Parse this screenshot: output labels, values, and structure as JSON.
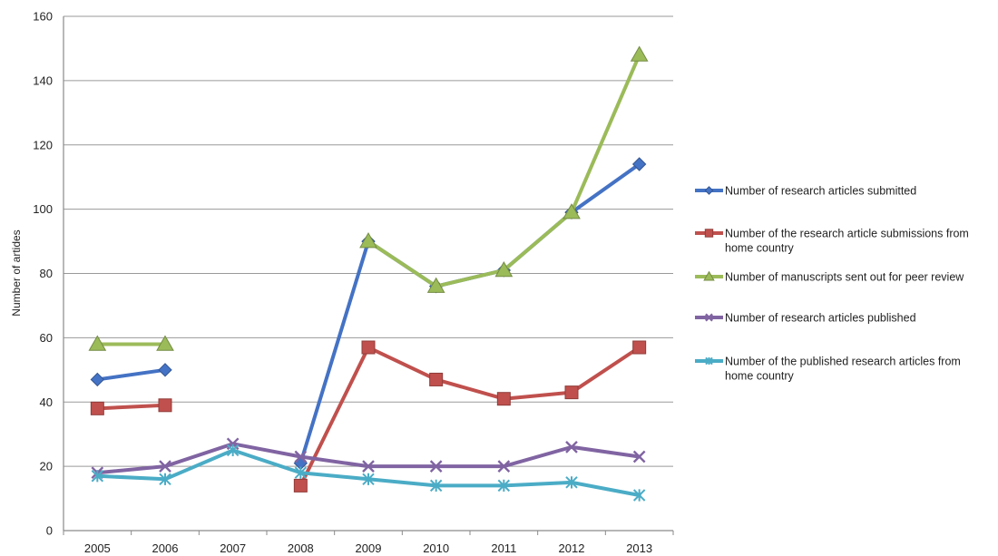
{
  "chart_data": {
    "type": "line",
    "categories": [
      "2005",
      "2006",
      "2007",
      "2008",
      "2009",
      "2010",
      "2011",
      "2012",
      "2013"
    ],
    "ylabel": "Number of artides",
    "ylim": [
      0,
      160
    ],
    "yticks": [
      0,
      20,
      40,
      60,
      80,
      100,
      120,
      140,
      160
    ],
    "grid": true,
    "legend_position": "right",
    "series": [
      {
        "name": "Number of research articles submitted",
        "legend_lines": [
          "Number of research articles submitted"
        ],
        "values": [
          47,
          50,
          null,
          21,
          90,
          76,
          81,
          99,
          114
        ],
        "color": "#4472C4",
        "marker": "diamond"
      },
      {
        "name": "Number of the research article submissions from home country",
        "legend_lines": [
          "Number of the research article submissions from",
          "home country"
        ],
        "values": [
          38,
          39,
          null,
          14,
          57,
          47,
          41,
          43,
          57
        ],
        "color": "#C0504D",
        "marker": "square"
      },
      {
        "name": "Number of manuscripts sent out for peer review",
        "legend_lines": [
          "Number of manuscripts sent out for peer review"
        ],
        "values": [
          58,
          58,
          null,
          null,
          90,
          76,
          81,
          99,
          148
        ],
        "color": "#9BBB59",
        "marker": "triangle"
      },
      {
        "name": "Number of research articles published",
        "legend_lines": [
          "Number of research articles published"
        ],
        "values": [
          18,
          20,
          27,
          23,
          20,
          20,
          20,
          26,
          23
        ],
        "color": "#8064A2",
        "marker": "x"
      },
      {
        "name": "Number of the published research articles from home country",
        "legend_lines": [
          "Number of the published research articles from",
          "home country"
        ],
        "values": [
          17,
          16,
          25,
          18,
          16,
          14,
          14,
          15,
          11
        ],
        "color": "#4BACC6",
        "marker": "star"
      }
    ]
  }
}
